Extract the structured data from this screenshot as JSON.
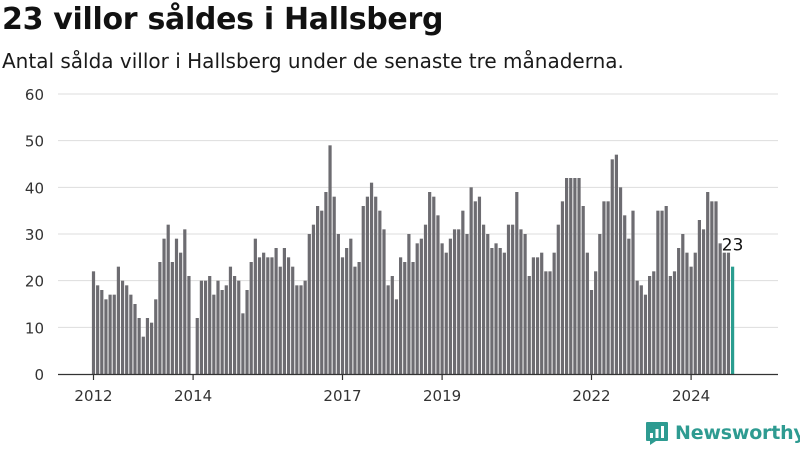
{
  "title": "23 villor såldes i Hallsberg",
  "subtitle": "Antal sålda villor i Hallsberg under de senaste tre månaderna.",
  "brand": {
    "name": "Newsworthy",
    "color": "#2e9b91",
    "icon": "newsworthy-logo-icon"
  },
  "colors": {
    "bar": "#6d6c71",
    "highlight": "#2a9d8f",
    "grid": "#dddddd",
    "axis": "#333333"
  },
  "chart_data": {
    "type": "bar",
    "x_start": "2012-01",
    "interval": "month",
    "values": [
      22,
      19,
      18,
      16,
      17,
      17,
      23,
      20,
      19,
      17,
      15,
      12,
      8,
      12,
      11,
      16,
      24,
      29,
      32,
      24,
      29,
      26,
      31,
      21,
      0,
      12,
      20,
      20,
      21,
      17,
      20,
      18,
      19,
      23,
      21,
      20,
      13,
      18,
      24,
      29,
      25,
      26,
      25,
      25,
      27,
      23,
      27,
      25,
      23,
      19,
      19,
      20,
      30,
      32,
      36,
      35,
      39,
      49,
      38,
      30,
      25,
      27,
      29,
      23,
      24,
      36,
      38,
      41,
      38,
      35,
      31,
      19,
      21,
      16,
      25,
      24,
      30,
      24,
      28,
      29,
      32,
      39,
      38,
      34,
      28,
      26,
      29,
      31,
      31,
      35,
      30,
      40,
      37,
      38,
      32,
      30,
      27,
      28,
      27,
      26,
      32,
      32,
      39,
      31,
      30,
      21,
      25,
      25,
      26,
      22,
      22,
      26,
      32,
      37,
      42,
      42,
      42,
      42,
      36,
      26,
      18,
      22,
      30,
      37,
      37,
      46,
      47,
      40,
      34,
      29,
      35,
      20,
      19,
      17,
      21,
      22,
      35,
      35,
      36,
      21,
      22,
      27,
      30,
      26,
      23,
      26,
      33,
      31,
      39,
      37,
      37,
      28,
      26,
      26,
      23
    ],
    "last_value_label": "23",
    "x_ticks": [
      "2012",
      "2014",
      "2017",
      "2019",
      "2022",
      "2024"
    ],
    "y_ticks": [
      "0",
      "10",
      "20",
      "30",
      "40",
      "50",
      "60"
    ],
    "ylim": [
      0,
      60
    ],
    "grid": true,
    "legend": false
  }
}
